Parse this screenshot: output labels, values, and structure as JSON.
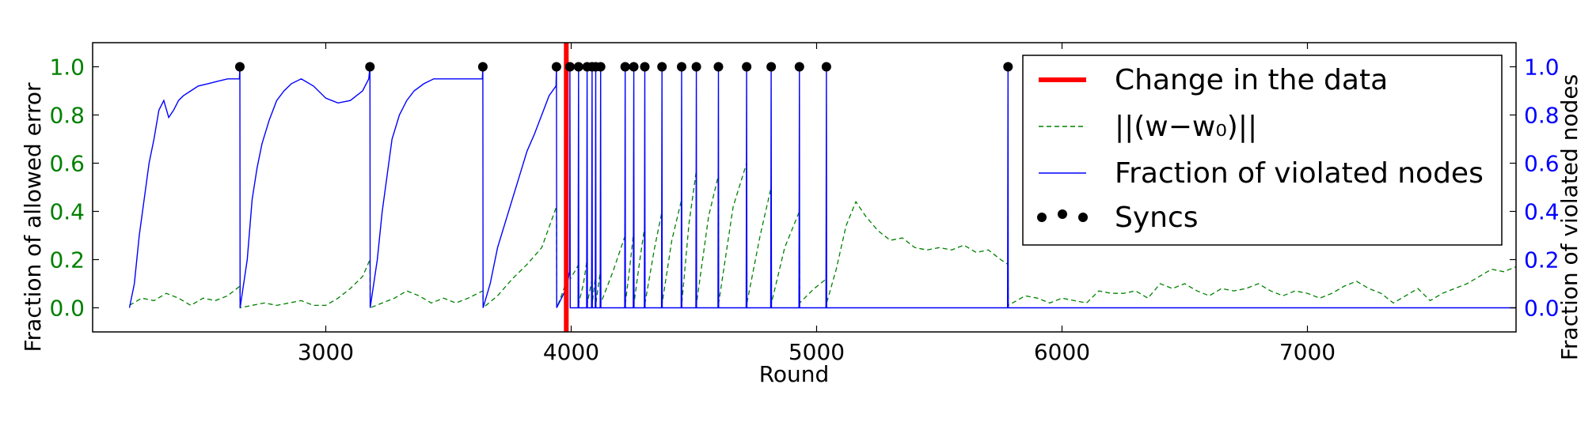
{
  "chart_data": {
    "type": "line",
    "xlabel": "Round",
    "ylabel_left": "Fraction of allowed error",
    "ylabel_right": "Fraction of violated nodes",
    "xlim": [
      2050,
      7850
    ],
    "ylim_left": [
      -0.1,
      1.1
    ],
    "ylim_right": [
      -0.1,
      1.1
    ],
    "x_ticks": [
      3000,
      4000,
      5000,
      6000,
      7000
    ],
    "y_ticks": [
      0.0,
      0.2,
      0.4,
      0.6,
      0.8,
      1.0
    ],
    "grid": false,
    "legend_position": "top-right",
    "colors": {
      "change": "#ff0000",
      "error": "#008000",
      "violated": "#0000ff",
      "syncs": "#000000",
      "left_ticks": "#008000",
      "right_ticks": "#0000ff"
    },
    "change_in_data_round": 3980,
    "syncs": {
      "name": "Syncs",
      "x": [
        2650,
        3180,
        3640,
        3940,
        3995,
        4030,
        4065,
        4085,
        4100,
        4120,
        4220,
        4255,
        4300,
        4370,
        4450,
        4510,
        4600,
        4715,
        4815,
        4930,
        5040,
        5780
      ],
      "y": [
        1,
        1,
        1,
        1,
        1,
        1,
        1,
        1,
        1,
        1,
        1,
        1,
        1,
        1,
        1,
        1,
        1,
        1,
        1,
        1,
        1,
        1
      ]
    },
    "series": [
      {
        "name": "Change in the data",
        "legend_label": "Change in the data",
        "style": "vertical-line"
      },
      {
        "name": "||(w-w0)||",
        "legend_label": "||(w−w₀)||",
        "style": "dashed",
        "axis": "left",
        "x": [
          2200,
          2250,
          2300,
          2350,
          2400,
          2450,
          2500,
          2550,
          2600,
          2650,
          2651,
          2700,
          2750,
          2800,
          2850,
          2900,
          2950,
          3000,
          3050,
          3100,
          3150,
          3180,
          3181,
          3230,
          3280,
          3330,
          3380,
          3430,
          3480,
          3530,
          3580,
          3640,
          3641,
          3700,
          3760,
          3820,
          3880,
          3940,
          3941,
          3960,
          3995,
          3996,
          4020,
          4030,
          4031,
          4050,
          4065,
          4066,
          4085,
          4086,
          4100,
          4101,
          4120,
          4121,
          4170,
          4220,
          4221,
          4240,
          4255,
          4256,
          4280,
          4300,
          4301,
          4340,
          4370,
          4371,
          4410,
          4450,
          4451,
          4480,
          4510,
          4511,
          4560,
          4600,
          4601,
          4660,
          4715,
          4716,
          4770,
          4815,
          4816,
          4870,
          4930,
          4931,
          4990,
          5040,
          5041,
          5080,
          5120,
          5160,
          5200,
          5250,
          5300,
          5350,
          5400,
          5450,
          5500,
          5550,
          5600,
          5650,
          5700,
          5750,
          5780,
          5781,
          5850,
          5900,
          5950,
          6000,
          6050,
          6100,
          6150,
          6200,
          6250,
          6300,
          6350,
          6400,
          6450,
          6500,
          6550,
          6600,
          6650,
          6700,
          6750,
          6800,
          6850,
          6900,
          6950,
          7000,
          7050,
          7100,
          7150,
          7200,
          7250,
          7300,
          7350,
          7400,
          7450,
          7500,
          7550,
          7600,
          7650,
          7700,
          7750,
          7800,
          7850
        ],
        "values": [
          0.01,
          0.04,
          0.03,
          0.06,
          0.04,
          0.01,
          0.04,
          0.03,
          0.05,
          0.09,
          0.0,
          0.01,
          0.02,
          0.01,
          0.02,
          0.03,
          0.01,
          0.01,
          0.04,
          0.08,
          0.13,
          0.2,
          0.0,
          0.02,
          0.04,
          0.07,
          0.05,
          0.02,
          0.04,
          0.02,
          0.04,
          0.07,
          0.0,
          0.05,
          0.12,
          0.18,
          0.25,
          0.42,
          0.0,
          0.05,
          0.15,
          0.12,
          0.16,
          0.18,
          0.02,
          0.1,
          0.2,
          0.02,
          0.12,
          0.02,
          0.14,
          0.02,
          0.16,
          0.02,
          0.15,
          0.3,
          0.02,
          0.18,
          0.32,
          0.02,
          0.2,
          0.34,
          0.02,
          0.25,
          0.4,
          0.02,
          0.28,
          0.45,
          0.02,
          0.35,
          0.57,
          0.02,
          0.38,
          0.55,
          0.02,
          0.42,
          0.6,
          0.02,
          0.3,
          0.5,
          0.02,
          0.25,
          0.4,
          0.02,
          0.08,
          0.12,
          0.02,
          0.16,
          0.34,
          0.44,
          0.38,
          0.32,
          0.28,
          0.29,
          0.25,
          0.24,
          0.25,
          0.24,
          0.26,
          0.23,
          0.24,
          0.2,
          0.18,
          0.01,
          0.05,
          0.04,
          0.02,
          0.04,
          0.03,
          0.02,
          0.07,
          0.06,
          0.06,
          0.07,
          0.04,
          0.1,
          0.08,
          0.1,
          0.07,
          0.05,
          0.08,
          0.07,
          0.08,
          0.1,
          0.07,
          0.05,
          0.07,
          0.06,
          0.04,
          0.06,
          0.09,
          0.11,
          0.08,
          0.06,
          0.02,
          0.05,
          0.08,
          0.03,
          0.06,
          0.08,
          0.1,
          0.13,
          0.16,
          0.15,
          0.17
        ]
      },
      {
        "name": "Fraction of violated nodes",
        "legend_label": "Fraction of violated nodes",
        "style": "solid",
        "axis": "right",
        "x": [
          2200,
          2220,
          2240,
          2260,
          2280,
          2300,
          2320,
          2340,
          2360,
          2380,
          2400,
          2420,
          2450,
          2480,
          2520,
          2560,
          2600,
          2648,
          2650,
          2651,
          2680,
          2700,
          2720,
          2740,
          2770,
          2800,
          2830,
          2860,
          2900,
          2950,
          3000,
          3050,
          3100,
          3150,
          3175,
          3180,
          3181,
          3210,
          3230,
          3250,
          3270,
          3300,
          3330,
          3360,
          3400,
          3440,
          3480,
          3520,
          3560,
          3600,
          3638,
          3640,
          3641,
          3670,
          3700,
          3730,
          3760,
          3790,
          3820,
          3850,
          3880,
          3910,
          3938,
          3940,
          3941,
          3980,
          3994,
          3995,
          3996,
          4028,
          4030,
          4031,
          4063,
          4065,
          4066,
          4083,
          4085,
          4086,
          4098,
          4100,
          4101,
          4118,
          4120,
          4121,
          4218,
          4220,
          4221,
          4253,
          4255,
          4256,
          4298,
          4300,
          4301,
          4368,
          4370,
          4371,
          4448,
          4450,
          4451,
          4508,
          4510,
          4511,
          4598,
          4600,
          4601,
          4713,
          4715,
          4716,
          4813,
          4815,
          4816,
          4928,
          4930,
          4931,
          5038,
          5040,
          5041,
          5778,
          5780,
          5781,
          7850
        ],
        "values": [
          0.0,
          0.1,
          0.3,
          0.45,
          0.6,
          0.7,
          0.82,
          0.86,
          0.79,
          0.82,
          0.86,
          0.88,
          0.9,
          0.92,
          0.93,
          0.94,
          0.95,
          0.95,
          1.0,
          0.0,
          0.2,
          0.45,
          0.58,
          0.68,
          0.78,
          0.86,
          0.9,
          0.93,
          0.95,
          0.92,
          0.87,
          0.85,
          0.86,
          0.9,
          0.95,
          1.0,
          0.0,
          0.2,
          0.4,
          0.55,
          0.7,
          0.8,
          0.86,
          0.9,
          0.93,
          0.95,
          0.95,
          0.95,
          0.95,
          0.95,
          0.95,
          1.0,
          0.0,
          0.1,
          0.25,
          0.35,
          0.45,
          0.55,
          0.65,
          0.72,
          0.8,
          0.88,
          0.92,
          1.0,
          0.0,
          0.08,
          0.15,
          1.0,
          0.0,
          0.0,
          1.0,
          0.0,
          0.0,
          1.0,
          0.0,
          0.0,
          1.0,
          0.0,
          0.0,
          1.0,
          0.0,
          0.0,
          1.0,
          0.0,
          0.0,
          1.0,
          0.0,
          0.0,
          1.0,
          0.0,
          0.0,
          1.0,
          0.0,
          0.0,
          1.0,
          0.0,
          0.0,
          1.0,
          0.0,
          0.0,
          1.0,
          0.0,
          0.0,
          1.0,
          0.0,
          0.0,
          1.0,
          0.0,
          0.0,
          1.0,
          0.0,
          0.0,
          1.0,
          0.0,
          0.0,
          1.0,
          0.0,
          0.0,
          1.0,
          0.0,
          0.0
        ]
      }
    ]
  }
}
